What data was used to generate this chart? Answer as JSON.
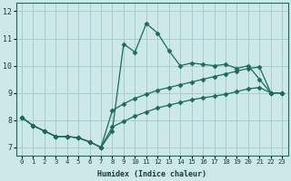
{
  "xlabel": "Humidex (Indice chaleur)",
  "bg_color": "#cce8e8",
  "line_color": "#1a6b5a",
  "grid_color": "#aacccc",
  "xlim": [
    -0.5,
    23.5
  ],
  "ylim": [
    6.7,
    12.3
  ],
  "xticks": [
    0,
    1,
    2,
    3,
    4,
    5,
    6,
    7,
    8,
    9,
    10,
    11,
    12,
    13,
    14,
    15,
    16,
    17,
    18,
    19,
    20,
    21,
    22,
    23
  ],
  "yticks": [
    7,
    8,
    9,
    10,
    11,
    12
  ],
  "line1_x": [
    0,
    1,
    2,
    3,
    4,
    5,
    6,
    7,
    8,
    9,
    10,
    11,
    12,
    13,
    14,
    15,
    16,
    17,
    18,
    19,
    20,
    21,
    22,
    23
  ],
  "line1_y": [
    8.1,
    7.8,
    7.6,
    7.4,
    7.4,
    7.35,
    7.2,
    7.0,
    7.6,
    10.8,
    10.5,
    11.55,
    11.2,
    10.55,
    10.0,
    10.1,
    10.05,
    10.0,
    10.05,
    9.9,
    10.0,
    9.5,
    9.0,
    9.0
  ],
  "line2_x": [
    0,
    1,
    2,
    3,
    4,
    5,
    6,
    7,
    8,
    9,
    10,
    11,
    12,
    13,
    14,
    15,
    16,
    17,
    18,
    19,
    20,
    21,
    22,
    23
  ],
  "line2_y": [
    8.1,
    7.8,
    7.6,
    7.4,
    7.4,
    7.35,
    7.2,
    7.0,
    8.35,
    8.6,
    8.8,
    8.95,
    9.1,
    9.2,
    9.3,
    9.4,
    9.5,
    9.6,
    9.7,
    9.8,
    9.9,
    9.95,
    9.0,
    9.0
  ],
  "line3_x": [
    0,
    1,
    2,
    3,
    4,
    5,
    6,
    7,
    8,
    9,
    10,
    11,
    12,
    13,
    14,
    15,
    16,
    17,
    18,
    19,
    20,
    21,
    22,
    23
  ],
  "line3_y": [
    8.1,
    7.8,
    7.6,
    7.4,
    7.4,
    7.35,
    7.2,
    7.0,
    7.75,
    7.95,
    8.15,
    8.3,
    8.45,
    8.55,
    8.65,
    8.75,
    8.82,
    8.88,
    8.95,
    9.05,
    9.15,
    9.2,
    9.0,
    9.0
  ]
}
